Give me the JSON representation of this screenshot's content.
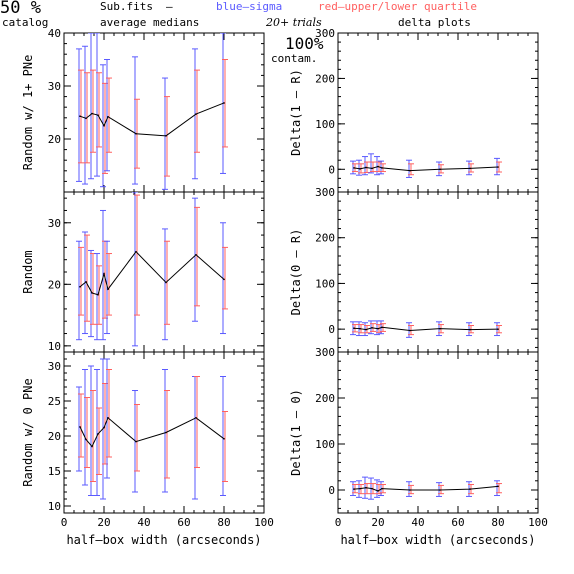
{
  "header": {
    "percent": "50 %",
    "catalog": "catalog",
    "subfits": "Sub.fits",
    "dash": "–",
    "blue_legend": "blue–sigma",
    "red_legend": "red–upper/lower quartile",
    "average_medians": "average medians",
    "trials": "20+ trials",
    "delta_plots": "delta plots",
    "contam_pct": "100%",
    "contam": "contam."
  },
  "colors": {
    "line": "#000000",
    "blue": "#5a5aff",
    "red": "#ff6060",
    "purple": "#9a4aaa"
  },
  "chart_data": [
    {
      "type": "line",
      "panel": "left-top",
      "xlabel": "",
      "ylabel": "Random w/ 1+ PNe",
      "xlim": [
        0,
        100
      ],
      "ylim": [
        10,
        40
      ],
      "xticks": [
        0,
        20,
        40,
        60,
        80,
        100
      ],
      "yticks": [
        20,
        30,
        40
      ],
      "x": [
        8,
        11,
        14,
        17,
        20,
        22,
        36,
        51,
        66,
        80
      ],
      "y": [
        24.3,
        23.9,
        24.8,
        24.5,
        22.5,
        24.2,
        21.0,
        20.6,
        24.7,
        26.8
      ],
      "sigma_lo": [
        12.0,
        11.5,
        12.5,
        13.0,
        11.0,
        14.0,
        11.5,
        10.5,
        12.5,
        13.5
      ],
      "sigma_hi": [
        37.0,
        37.5,
        40.0,
        40.0,
        34.0,
        35.0,
        35.5,
        31.5,
        37.0,
        40.0
      ],
      "quart_lo": [
        15.5,
        15.5,
        17.5,
        18.5,
        13.5,
        17.5,
        14.5,
        13.0,
        17.5,
        18.5
      ],
      "quart_hi": [
        33.0,
        32.5,
        33.0,
        32.5,
        30.5,
        31.5,
        27.5,
        28.0,
        33.0,
        35.0
      ]
    },
    {
      "type": "line",
      "panel": "left-middle",
      "xlabel": "",
      "ylabel": "Random",
      "xlim": [
        0,
        100
      ],
      "ylim": [
        9,
        35
      ],
      "xticks": [
        0,
        20,
        40,
        60,
        80,
        100
      ],
      "yticks": [
        10,
        20,
        30
      ],
      "x": [
        8,
        11,
        14,
        17,
        20,
        22,
        36,
        51,
        66,
        80
      ],
      "y": [
        19.6,
        20.4,
        18.6,
        18.3,
        21.7,
        19.2,
        25.3,
        20.3,
        24.8,
        20.8
      ],
      "sigma_lo": [
        11.0,
        12.0,
        11.5,
        11.0,
        11.0,
        12.0,
        10.0,
        11.0,
        14.0,
        12.0
      ],
      "sigma_hi": [
        27.0,
        28.5,
        25.5,
        25.0,
        32.0,
        27.0,
        35.0,
        29.0,
        34.0,
        30.0
      ],
      "quart_lo": [
        15.0,
        14.0,
        13.5,
        13.5,
        14.5,
        15.0,
        15.0,
        13.5,
        16.5,
        16.0
      ],
      "quart_hi": [
        26.0,
        28.0,
        25.0,
        23.0,
        27.0,
        25.0,
        34.5,
        27.0,
        32.5,
        26.0
      ]
    },
    {
      "type": "line",
      "panel": "left-bottom",
      "xlabel": "half–box width (arcseconds)",
      "ylabel": "Random w/ 0 PNe",
      "xlim": [
        0,
        100
      ],
      "ylim": [
        9,
        32
      ],
      "xticks": [
        0,
        20,
        40,
        60,
        80,
        100
      ],
      "yticks": [
        10,
        15,
        20,
        25,
        30
      ],
      "x": [
        8,
        11,
        14,
        17,
        20,
        22,
        36,
        51,
        66,
        80
      ],
      "y": [
        21.3,
        19.5,
        18.5,
        20.3,
        21.2,
        22.6,
        19.2,
        20.5,
        22.6,
        19.6
      ],
      "sigma_lo": [
        15.0,
        13.0,
        11.5,
        11.5,
        11.0,
        14.0,
        12.0,
        12.0,
        11.0,
        11.5
      ],
      "sigma_hi": [
        27.0,
        29.5,
        30.0,
        29.5,
        31.0,
        31.0,
        26.5,
        29.5,
        28.5,
        28.5
      ],
      "quart_lo": [
        17.0,
        15.5,
        13.5,
        14.5,
        16.0,
        17.0,
        15.0,
        14.0,
        15.5,
        13.5
      ],
      "quart_hi": [
        26.0,
        25.5,
        26.5,
        24.0,
        27.5,
        29.5,
        24.5,
        26.5,
        28.5,
        23.5
      ]
    },
    {
      "type": "line",
      "panel": "right-top",
      "xlabel": "",
      "ylabel": "Delta(1 – R)",
      "xlim": [
        0,
        100
      ],
      "ylim": [
        -50,
        300
      ],
      "xticks": [
        0,
        20,
        40,
        60,
        80,
        100
      ],
      "yticks": [
        0,
        100,
        200,
        300
      ],
      "x": [
        8,
        11,
        14,
        17,
        20,
        22,
        36,
        51,
        66,
        80
      ],
      "y": [
        3,
        1,
        4,
        2,
        6,
        3,
        -3,
        0,
        2,
        5
      ],
      "sigma_lo": [
        -10,
        -13,
        -12,
        -8,
        -12,
        -10,
        -18,
        -14,
        -12,
        -12
      ],
      "sigma_hi": [
        18,
        20,
        28,
        34,
        28,
        18,
        20,
        16,
        18,
        24
      ],
      "quart_lo": [
        -5,
        -8,
        -7,
        -5,
        -5,
        -5,
        -12,
        -8,
        -6,
        -6
      ],
      "quart_hi": [
        12,
        12,
        16,
        16,
        16,
        12,
        12,
        10,
        12,
        16
      ]
    },
    {
      "type": "line",
      "panel": "right-middle",
      "xlabel": "",
      "ylabel": "Delta(0 – R)",
      "xlim": [
        0,
        100
      ],
      "ylim": [
        -50,
        300
      ],
      "xticks": [
        0,
        20,
        40,
        60,
        80,
        100
      ],
      "yticks": [
        0,
        100,
        200,
        300
      ],
      "x": [
        8,
        11,
        14,
        17,
        20,
        22,
        36,
        51,
        66,
        80
      ],
      "y": [
        2,
        1,
        -1,
        3,
        1,
        4,
        -3,
        1,
        -1,
        0
      ],
      "sigma_lo": [
        -12,
        -14,
        -14,
        -10,
        -12,
        -10,
        -18,
        -14,
        -14,
        -14
      ],
      "sigma_hi": [
        16,
        16,
        14,
        18,
        18,
        18,
        14,
        16,
        14,
        14
      ],
      "quart_lo": [
        -6,
        -8,
        -8,
        -5,
        -7,
        -5,
        -12,
        -8,
        -8,
        -8
      ],
      "quart_hi": [
        10,
        10,
        8,
        12,
        10,
        12,
        8,
        10,
        8,
        8
      ]
    },
    {
      "type": "line",
      "panel": "right-bottom",
      "xlabel": "half–box width (arcseconds)",
      "ylabel": "Delta(1 – 0)",
      "xlim": [
        0,
        100
      ],
      "ylim": [
        -50,
        300
      ],
      "xticks": [
        0,
        20,
        40,
        60,
        80,
        100
      ],
      "yticks": [
        0,
        100,
        200,
        300
      ],
      "x": [
        8,
        11,
        14,
        17,
        20,
        22,
        36,
        51,
        66,
        80
      ],
      "y": [
        2,
        3,
        5,
        3,
        -2,
        3,
        0,
        0,
        2,
        8
      ],
      "sigma_lo": [
        -12,
        -16,
        -18,
        -20,
        -16,
        -12,
        -14,
        -14,
        -14,
        -12
      ],
      "sigma_hi": [
        18,
        20,
        28,
        26,
        22,
        18,
        18,
        16,
        18,
        20
      ],
      "quart_lo": [
        -6,
        -8,
        -8,
        -8,
        -8,
        -6,
        -8,
        -8,
        -8,
        -6
      ],
      "quart_hi": [
        12,
        12,
        14,
        14,
        12,
        12,
        10,
        10,
        12,
        14
      ]
    }
  ]
}
